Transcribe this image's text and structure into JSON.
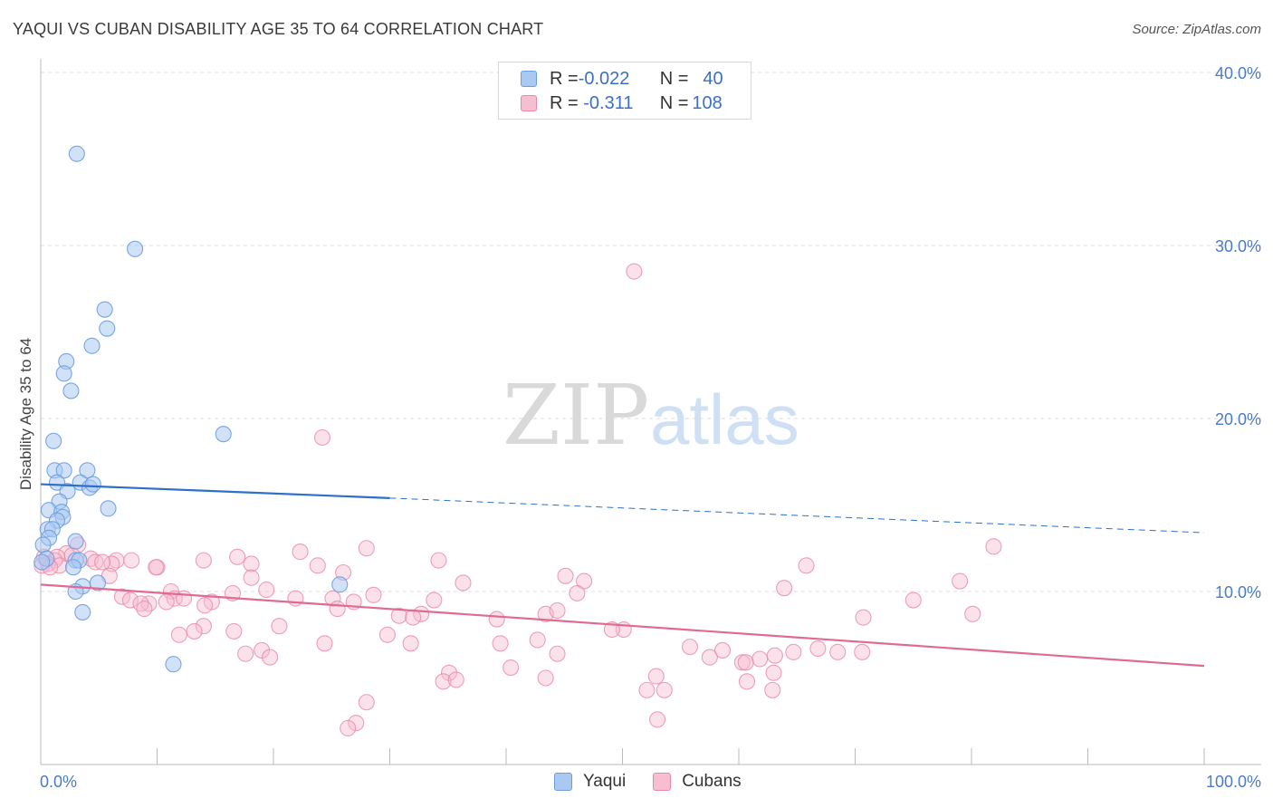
{
  "title": "YAQUI VS CUBAN DISABILITY AGE 35 TO 64 CORRELATION CHART",
  "source": "Source: ZipAtlas.com",
  "watermark": {
    "zip": "ZIP",
    "atlas": "atlas"
  },
  "legend": {
    "rows": [
      {
        "r_label": "R = ",
        "r_value": "-0.022",
        "n_label": "N = ",
        "n_value": "40",
        "color": "#a9c9f2",
        "border": "#6d9de0"
      },
      {
        "r_label": "R = ",
        "r_value": " -0.311",
        "n_label": "N = ",
        "n_value": "108",
        "color": "#f7bdd0",
        "border": "#e889a8"
      }
    ],
    "bottom": [
      {
        "label": "Yaqui",
        "color": "#a9c9f2",
        "border": "#6d9de0"
      },
      {
        "label": "Cubans",
        "color": "#f7bdd0",
        "border": "#e889a8"
      }
    ]
  },
  "chart_data": {
    "type": "scatter",
    "title": "YAQUI VS CUBAN DISABILITY AGE 35 TO 64 CORRELATION CHART",
    "xlabel": "",
    "ylabel": "Disability Age 35 to 64",
    "xlim": [
      0,
      100
    ],
    "ylim": [
      0,
      42
    ],
    "x_tick_labels": [
      "0.0%",
      "100.0%"
    ],
    "y_ticks": [
      10,
      20,
      30,
      40
    ],
    "y_tick_labels": [
      "10.0%",
      "20.0%",
      "30.0%",
      "40.0%"
    ],
    "colors": {
      "yaqui": "#6d9de0",
      "yaqui_fill": "#a9c9f2",
      "yaqui_line": "#2d6fcc",
      "cubans": "#e889a8",
      "cubans_fill": "#f7bdd0",
      "cubans_line": "#e06a93"
    },
    "series": [
      {
        "name": "Yaqui",
        "r": -0.022,
        "n": 40,
        "trend": {
          "x0": 0,
          "y0": 16.2,
          "x1": 30,
          "y1": 15.4,
          "x_end": 100,
          "y_end": 13.4
        },
        "points": [
          [
            3.1,
            35.3
          ],
          [
            8.1,
            29.8
          ],
          [
            5.5,
            26.3
          ],
          [
            5.7,
            25.2
          ],
          [
            4.4,
            24.2
          ],
          [
            2.2,
            23.3
          ],
          [
            2.0,
            22.6
          ],
          [
            2.6,
            21.6
          ],
          [
            15.7,
            19.1
          ],
          [
            1.1,
            18.7
          ],
          [
            1.2,
            17.0
          ],
          [
            2.0,
            17.0
          ],
          [
            4.0,
            17.0
          ],
          [
            1.4,
            16.3
          ],
          [
            3.4,
            16.3
          ],
          [
            4.2,
            16.0
          ],
          [
            4.5,
            16.2
          ],
          [
            2.3,
            15.8
          ],
          [
            1.6,
            15.2
          ],
          [
            5.8,
            14.8
          ],
          [
            0.7,
            14.7
          ],
          [
            1.8,
            14.6
          ],
          [
            1.9,
            14.3
          ],
          [
            1.4,
            14.1
          ],
          [
            0.6,
            13.6
          ],
          [
            1.0,
            13.6
          ],
          [
            0.7,
            13.1
          ],
          [
            3.0,
            12.9
          ],
          [
            0.2,
            12.7
          ],
          [
            0.5,
            11.9
          ],
          [
            3.0,
            11.8
          ],
          [
            3.3,
            11.8
          ],
          [
            0.1,
            11.7
          ],
          [
            2.8,
            11.4
          ],
          [
            25.7,
            10.4
          ],
          [
            3.6,
            10.3
          ],
          [
            3.0,
            10.0
          ],
          [
            4.9,
            10.5
          ],
          [
            3.6,
            8.8
          ],
          [
            11.4,
            5.8
          ]
        ]
      },
      {
        "name": "Cubans",
        "r": -0.311,
        "n": 108,
        "trend": {
          "x0": 0,
          "y0": 10.4,
          "x1": 100,
          "y1": 5.7
        },
        "points": [
          [
            51.0,
            28.5
          ],
          [
            24.2,
            18.9
          ],
          [
            81.9,
            12.6
          ],
          [
            3.2,
            12.7
          ],
          [
            28.0,
            12.5
          ],
          [
            22.3,
            12.3
          ],
          [
            2.2,
            12.2
          ],
          [
            2.7,
            12.1
          ],
          [
            16.9,
            12.0
          ],
          [
            0.3,
            12.0
          ],
          [
            1.4,
            12.0
          ],
          [
            4.3,
            11.9
          ],
          [
            1.2,
            11.8
          ],
          [
            7.8,
            11.8
          ],
          [
            6.5,
            11.8
          ],
          [
            14.0,
            11.8
          ],
          [
            4.7,
            11.7
          ],
          [
            18.1,
            11.6
          ],
          [
            0.6,
            11.6
          ],
          [
            34.2,
            11.8
          ],
          [
            0.1,
            11.5
          ],
          [
            1.6,
            11.5
          ],
          [
            6.1,
            11.6
          ],
          [
            5.3,
            11.7
          ],
          [
            0.8,
            11.4
          ],
          [
            10.0,
            11.4
          ],
          [
            23.8,
            11.5
          ],
          [
            9.9,
            11.4
          ],
          [
            65.8,
            11.5
          ],
          [
            26.0,
            11.1
          ],
          [
            5.9,
            10.9
          ],
          [
            45.1,
            10.9
          ],
          [
            18.1,
            10.8
          ],
          [
            46.7,
            10.6
          ],
          [
            79.0,
            10.6
          ],
          [
            36.3,
            10.5
          ],
          [
            63.9,
            10.2
          ],
          [
            19.4,
            10.1
          ],
          [
            46.1,
            9.9
          ],
          [
            11.2,
            10.0
          ],
          [
            16.5,
            9.9
          ],
          [
            28.6,
            9.8
          ],
          [
            7.0,
            9.7
          ],
          [
            21.9,
            9.6
          ],
          [
            7.7,
            9.5
          ],
          [
            11.5,
            9.6
          ],
          [
            25.1,
            9.6
          ],
          [
            12.3,
            9.6
          ],
          [
            14.7,
            9.4
          ],
          [
            33.8,
            9.5
          ],
          [
            26.9,
            9.4
          ],
          [
            75.0,
            9.5
          ],
          [
            9.3,
            9.3
          ],
          [
            8.6,
            9.3
          ],
          [
            14.1,
            9.2
          ],
          [
            25.5,
            9.0
          ],
          [
            8.9,
            9.0
          ],
          [
            10.8,
            9.4
          ],
          [
            32.7,
            8.7
          ],
          [
            43.4,
            8.7
          ],
          [
            44.4,
            8.9
          ],
          [
            80.1,
            8.7
          ],
          [
            39.2,
            8.4
          ],
          [
            30.8,
            8.6
          ],
          [
            32.0,
            8.5
          ],
          [
            70.7,
            8.5
          ],
          [
            14.0,
            8.0
          ],
          [
            20.5,
            8.0
          ],
          [
            13.2,
            7.7
          ],
          [
            16.6,
            7.7
          ],
          [
            50.1,
            7.8
          ],
          [
            49.1,
            7.8
          ],
          [
            11.9,
            7.5
          ],
          [
            29.8,
            7.5
          ],
          [
            42.7,
            7.2
          ],
          [
            39.5,
            7.0
          ],
          [
            31.8,
            7.0
          ],
          [
            24.4,
            7.0
          ],
          [
            55.8,
            6.8
          ],
          [
            58.6,
            6.6
          ],
          [
            19.0,
            6.6
          ],
          [
            66.8,
            6.7
          ],
          [
            68.5,
            6.5
          ],
          [
            70.6,
            6.5
          ],
          [
            64.7,
            6.5
          ],
          [
            17.6,
            6.4
          ],
          [
            57.5,
            6.2
          ],
          [
            19.7,
            6.2
          ],
          [
            63.1,
            6.3
          ],
          [
            44.4,
            6.4
          ],
          [
            60.3,
            5.9
          ],
          [
            61.8,
            6.1
          ],
          [
            60.6,
            5.9
          ],
          [
            40.4,
            5.6
          ],
          [
            52.9,
            5.1
          ],
          [
            43.4,
            5.0
          ],
          [
            35.1,
            5.3
          ],
          [
            63.0,
            5.3
          ],
          [
            60.7,
            4.8
          ],
          [
            34.6,
            4.8
          ],
          [
            35.7,
            4.9
          ],
          [
            53.6,
            4.3
          ],
          [
            52.1,
            4.3
          ],
          [
            62.9,
            4.3
          ],
          [
            28.0,
            3.6
          ],
          [
            27.1,
            2.4
          ],
          [
            26.4,
            2.1
          ],
          [
            53.0,
            2.6
          ]
        ]
      }
    ]
  }
}
